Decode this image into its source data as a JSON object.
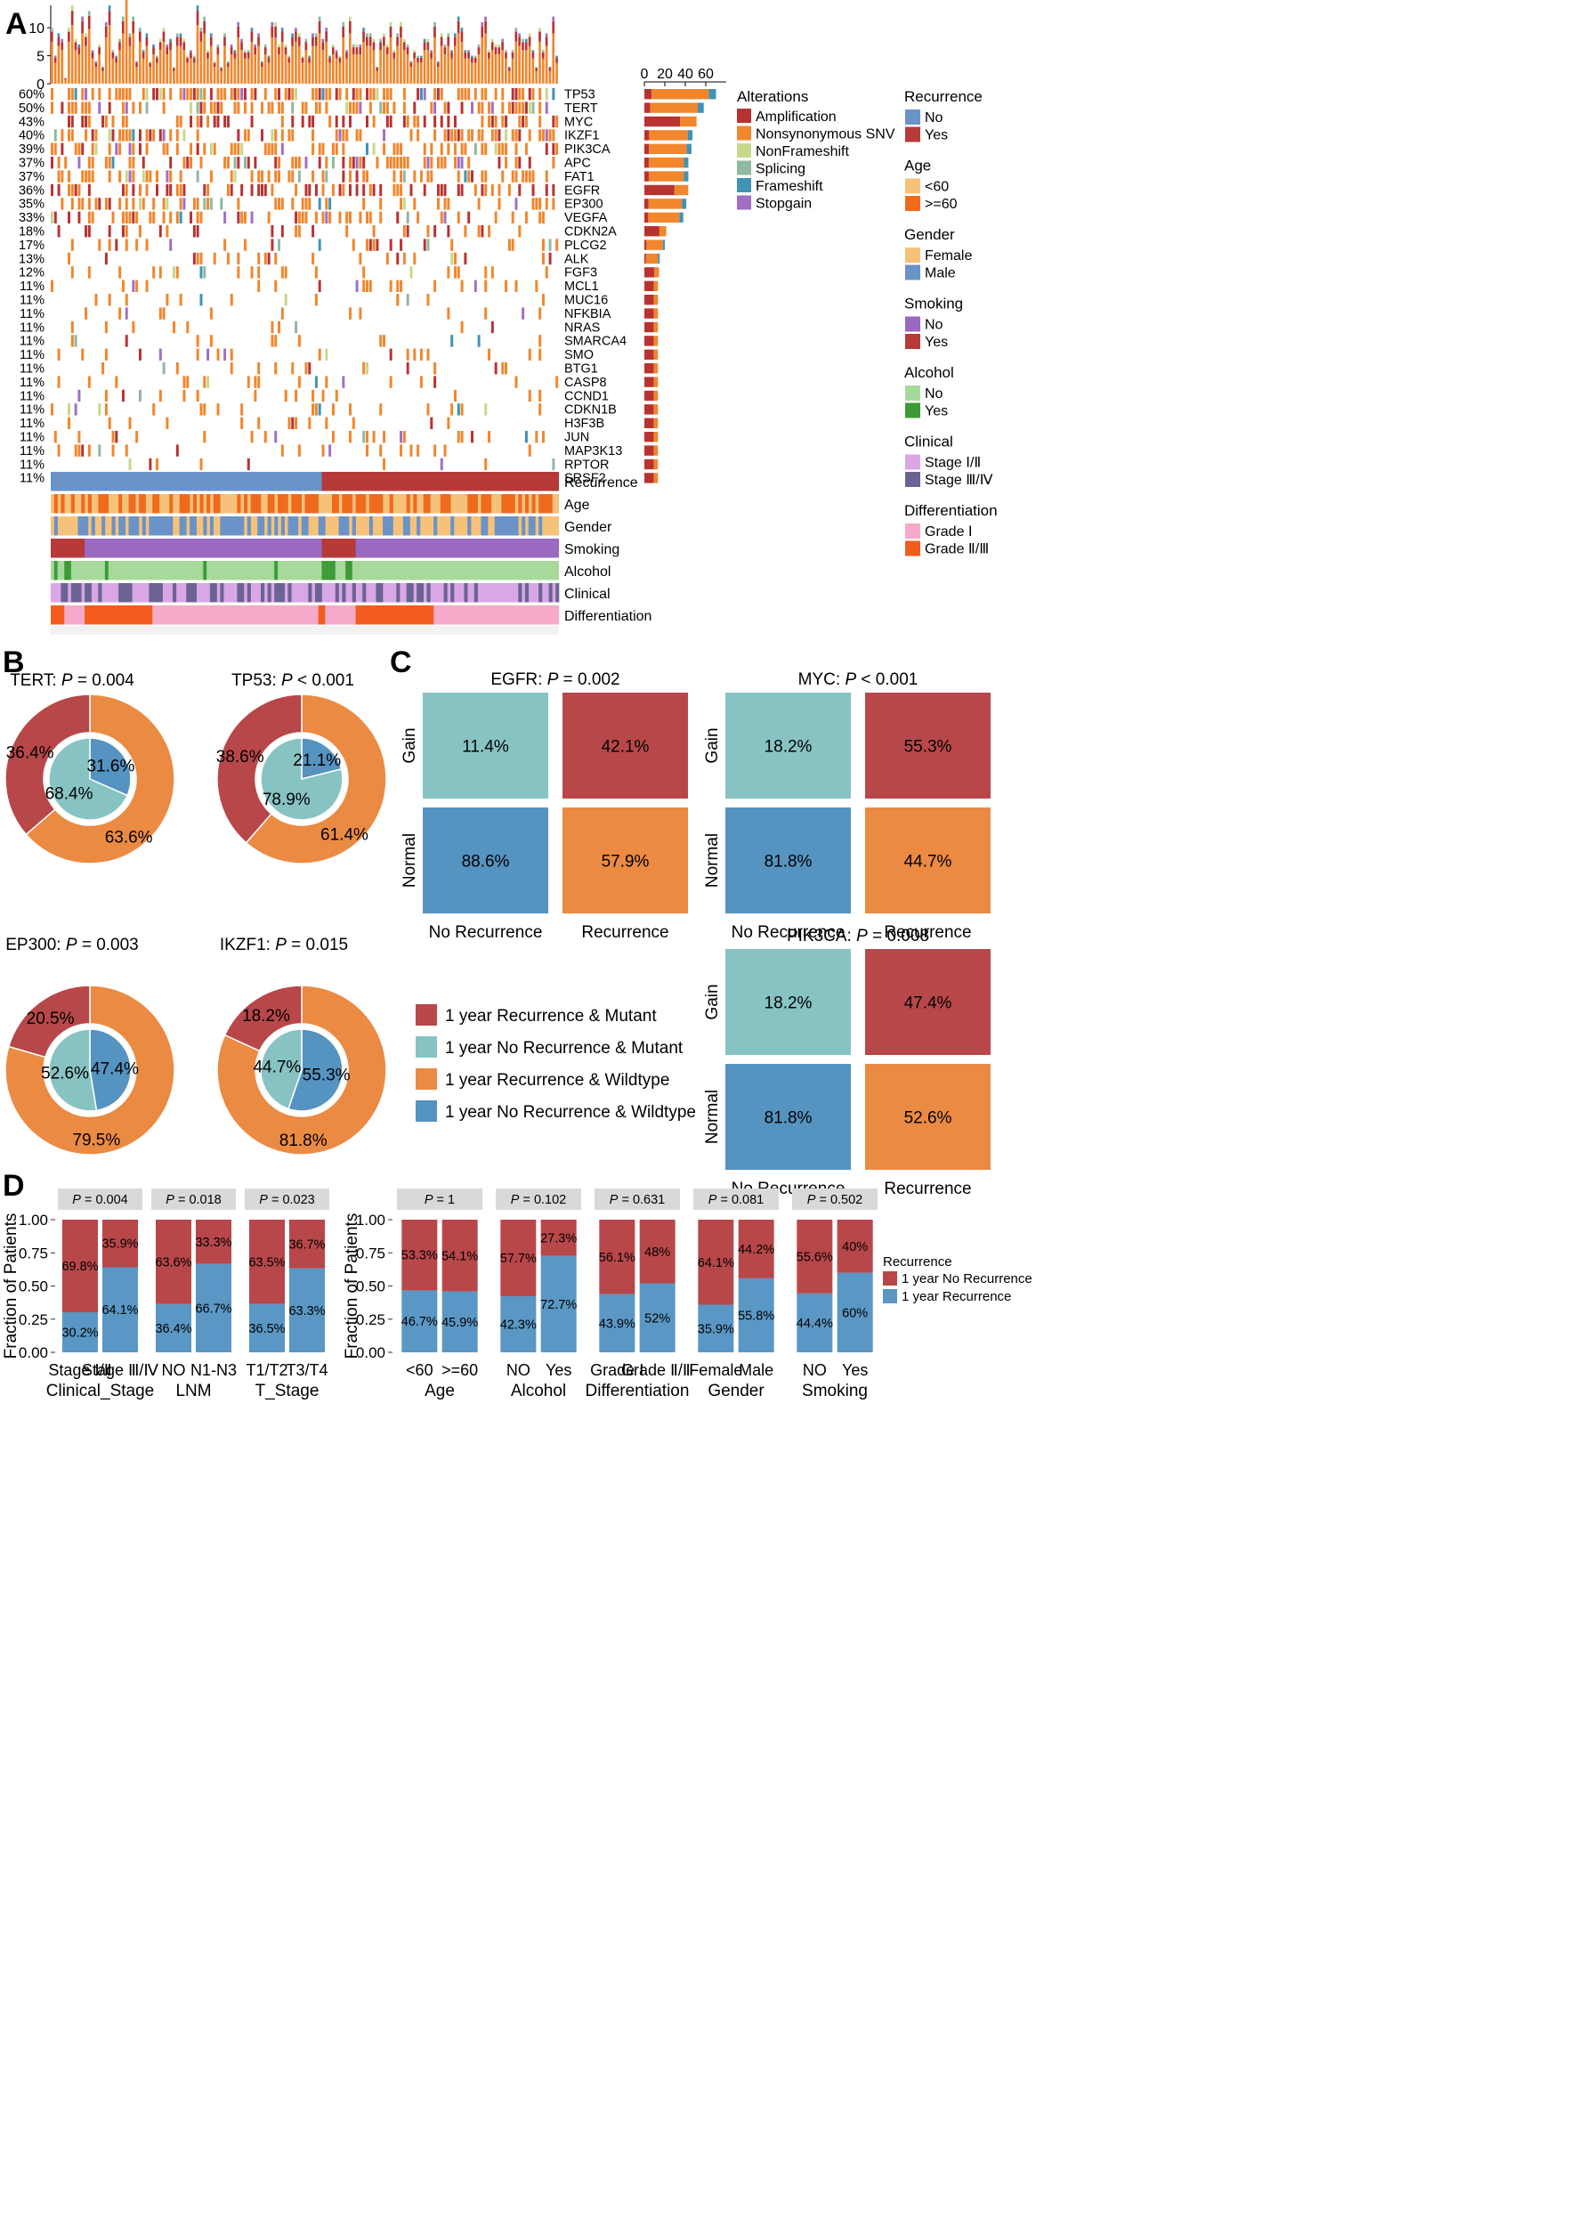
{
  "panels": {
    "A": "A",
    "B": "B",
    "C": "C",
    "D": "D"
  },
  "colors": {
    "amp": "#b83232",
    "snv": "#f1862c",
    "nonfs": "#c6d88a",
    "splicing": "#8fb9a0",
    "frameshift": "#3f93b5",
    "stopgain": "#a06fc4",
    "no_blue": "#6a93c8",
    "yes_red": "#b53a38",
    "age_lt60": "#f6c27a",
    "age_ge60": "#f06a1e",
    "female": "#f6c27a",
    "male": "#6a93c8",
    "smoke_no": "#9b69c0",
    "smoke_yes": "#b53a38",
    "alc_no": "#a6d99a",
    "alc_yes": "#3c9b37",
    "stage12": "#d9a6e6",
    "stage34": "#6b6394",
    "grade1": "#f4aac8",
    "grade23": "#f25c1c",
    "pie_mut_rec": "#b8474a",
    "pie_mut_norec": "#88c3c3",
    "pie_wt_rec": "#eb8a42",
    "pie_wt_norec": "#5593c0",
    "bar_norec": "#b8474a",
    "bar_rec": "#5a97c4"
  },
  "panelA": {
    "topbar_ticks": [
      "0",
      "5",
      "10"
    ],
    "sidebar_ticks": [
      "0",
      "20",
      "40",
      "60"
    ],
    "genes": [
      {
        "pct": "60%",
        "gene": "TP53",
        "count": 70
      },
      {
        "pct": "50%",
        "gene": "TERT",
        "count": 58
      },
      {
        "pct": "43%",
        "gene": "MYC",
        "count": 50
      },
      {
        "pct": "40%",
        "gene": "IKZF1",
        "count": 47
      },
      {
        "pct": "39%",
        "gene": "PIK3CA",
        "count": 46
      },
      {
        "pct": "37%",
        "gene": "APC",
        "count": 43
      },
      {
        "pct": "37%",
        "gene": "FAT1",
        "count": 43
      },
      {
        "pct": "36%",
        "gene": "EGFR",
        "count": 42
      },
      {
        "pct": "35%",
        "gene": "EP300",
        "count": 41
      },
      {
        "pct": "33%",
        "gene": "VEGFA",
        "count": 38
      },
      {
        "pct": "18%",
        "gene": "CDKN2A",
        "count": 21
      },
      {
        "pct": "17%",
        "gene": "PLCG2",
        "count": 20
      },
      {
        "pct": "13%",
        "gene": "ALK",
        "count": 15
      },
      {
        "pct": "12%",
        "gene": "FGF3",
        "count": 14
      },
      {
        "pct": "11%",
        "gene": "MCL1",
        "count": 13
      },
      {
        "pct": "11%",
        "gene": "MUC16",
        "count": 13
      },
      {
        "pct": "11%",
        "gene": "NFKBIA",
        "count": 13
      },
      {
        "pct": "11%",
        "gene": "NRAS",
        "count": 13
      },
      {
        "pct": "11%",
        "gene": "SMARCA4",
        "count": 13
      },
      {
        "pct": "11%",
        "gene": "SMO",
        "count": 13
      },
      {
        "pct": "11%",
        "gene": "BTG1",
        "count": 13
      },
      {
        "pct": "11%",
        "gene": "CASP8",
        "count": 13
      },
      {
        "pct": "11%",
        "gene": "CCND1",
        "count": 13
      },
      {
        "pct": "11%",
        "gene": "CDKN1B",
        "count": 13
      },
      {
        "pct": "11%",
        "gene": "H3F3B",
        "count": 13
      },
      {
        "pct": "11%",
        "gene": "JUN",
        "count": 13
      },
      {
        "pct": "11%",
        "gene": "MAP3K13",
        "count": 13
      },
      {
        "pct": "11%",
        "gene": "RPTOR",
        "count": 13
      },
      {
        "pct": "11%",
        "gene": "SRSF2",
        "count": 13
      }
    ],
    "tracks": [
      "Recurrence",
      "Age",
      "Gender",
      "Smoking",
      "Alcohol",
      "Clinical",
      "Differentiation"
    ],
    "legend_alterations": {
      "title": "Alterations",
      "items": [
        "Amplification",
        "Nonsynonymous SNV",
        "NonFrameshift",
        "Splicing",
        "Frameshift",
        "Stopgain"
      ]
    },
    "legend_groups": [
      {
        "title": "Recurrence",
        "items": [
          "No",
          "Yes"
        ]
      },
      {
        "title": "Age",
        "items": [
          "<60",
          ">=60"
        ]
      },
      {
        "title": "Gender",
        "items": [
          "Female",
          "Male"
        ]
      },
      {
        "title": "Smoking",
        "items": [
          "No",
          "Yes"
        ]
      },
      {
        "title": "Alcohol",
        "items": [
          "No",
          "Yes"
        ]
      },
      {
        "title": "Clinical",
        "items": [
          "Stage Ⅰ/Ⅱ",
          "Stage Ⅲ/Ⅳ"
        ]
      },
      {
        "title": "Differentiation",
        "items": [
          "Grade Ⅰ",
          "Grade Ⅱ/Ⅲ"
        ]
      }
    ]
  },
  "chart_data": [
    {
      "type": "pie",
      "panel": "B",
      "title_gene": "TERT",
      "title_p": "P = 0.004",
      "outer": [
        {
          "label": "36.4%",
          "value": 36.4,
          "group": "1 year Recurrence & Mutant"
        },
        {
          "label": "63.6%",
          "value": 63.6,
          "group": "1 year Recurrence & Wildtype"
        }
      ],
      "inner": [
        {
          "label": "31.6%",
          "value": 31.6,
          "group": "1 year No Recurrence & Wildtype"
        },
        {
          "label": "68.4%",
          "value": 68.4,
          "group": "1 year No Recurrence & Mutant"
        }
      ]
    },
    {
      "type": "pie",
      "panel": "B",
      "title_gene": "TP53",
      "title_p": "P < 0.001",
      "outer": [
        {
          "label": "38.6%",
          "value": 38.6,
          "group": "1 year Recurrence & Mutant"
        },
        {
          "label": "61.4%",
          "value": 61.4,
          "group": "1 year Recurrence & Wildtype"
        }
      ],
      "inner": [
        {
          "label": "21.1%",
          "value": 21.1,
          "group": "1 year No Recurrence & Wildtype"
        },
        {
          "label": "78.9%",
          "value": 78.9,
          "group": "1 year No Recurrence & Mutant"
        }
      ]
    },
    {
      "type": "pie",
      "panel": "B",
      "title_gene": "EP300",
      "title_p": "P = 0.003",
      "outer": [
        {
          "label": "20.5%",
          "value": 20.5,
          "group": "1 year Recurrence & Mutant"
        },
        {
          "label": "79.5%",
          "value": 79.5,
          "group": "1 year Recurrence & Wildtype"
        }
      ],
      "inner": [
        {
          "label": "47.4%",
          "value": 47.4,
          "group": "1 year No Recurrence & Wildtype"
        },
        {
          "label": "52.6%",
          "value": 52.6,
          "group": "1 year No Recurrence & Mutant"
        }
      ]
    },
    {
      "type": "pie",
      "panel": "B",
      "title_gene": "IKZF1",
      "title_p": "P = 0.015",
      "outer": [
        {
          "label": "18.2%",
          "value": 18.2,
          "group": "1 year Recurrence & Mutant"
        },
        {
          "label": "81.8%",
          "value": 81.8,
          "group": "1 year Recurrence & Wildtype"
        }
      ],
      "inner": [
        {
          "label": "55.3%",
          "value": 55.3,
          "group": "1 year No Recurrence & Wildtype"
        },
        {
          "label": "44.7%",
          "value": 44.7,
          "group": "1 year No Recurrence & Mutant"
        }
      ]
    },
    {
      "type": "table",
      "panel": "C",
      "title_gene": "EGFR",
      "title_p": "P = 0.002",
      "rows": [
        "Gain",
        "Normal"
      ],
      "cols": [
        "No Recurrence",
        "Recurrence"
      ],
      "values": [
        [
          "11.4%",
          "42.1%"
        ],
        [
          "88.6%",
          "57.9%"
        ]
      ]
    },
    {
      "type": "table",
      "panel": "C",
      "title_gene": "MYC",
      "title_p": "P < 0.001",
      "rows": [
        "Gain",
        "Normal"
      ],
      "cols": [
        "No Recurrence",
        "Recurrence"
      ],
      "values": [
        [
          "18.2%",
          "55.3%"
        ],
        [
          "81.8%",
          "44.7%"
        ]
      ]
    },
    {
      "type": "table",
      "panel": "C",
      "title_gene": "PIK3CA",
      "title_p": "P = 0.008",
      "rows": [
        "Gain",
        "Normal"
      ],
      "cols": [
        "No Recurrence",
        "Recurrence"
      ],
      "values": [
        [
          "18.2%",
          "47.4%"
        ],
        [
          "81.8%",
          "52.6%"
        ]
      ]
    },
    {
      "type": "bar",
      "panel": "D",
      "stacked": true,
      "ylabel": "Fraction of Patients",
      "ylim": [
        0,
        1
      ],
      "yticks": [
        "0.00",
        "0.25",
        "0.50",
        "0.75",
        "1.00"
      ],
      "groups": [
        {
          "pval": "P = 0.004",
          "xlabel": "Clinical_Stage",
          "categories": [
            "Stage Ⅰ/Ⅱ",
            "Stage Ⅲ/Ⅳ"
          ],
          "rec": [
            30.2,
            64.1
          ],
          "norec": [
            69.8,
            35.9
          ],
          "rec_labels": [
            "30.2%",
            "64.1%"
          ],
          "norec_labels": [
            "69.8%",
            "35.9%"
          ]
        },
        {
          "pval": "P = 0.018",
          "xlabel": "LNM",
          "categories": [
            "NO",
            "N1-N3"
          ],
          "rec": [
            36.4,
            66.7
          ],
          "norec": [
            63.6,
            33.3
          ],
          "rec_labels": [
            "36.4%",
            "66.7%"
          ],
          "norec_labels": [
            "63.6%",
            "33.3%"
          ]
        },
        {
          "pval": "P = 0.023",
          "xlabel": "T_Stage",
          "categories": [
            "T1/T2",
            "T3/T4"
          ],
          "rec": [
            36.5,
            63.3
          ],
          "norec": [
            63.5,
            36.7
          ],
          "rec_labels": [
            "36.5%",
            "63.3%"
          ],
          "norec_labels": [
            "63.5%",
            "36.7%"
          ]
        }
      ]
    },
    {
      "type": "bar",
      "panel": "D",
      "stacked": true,
      "ylabel": "Fraction of Patients",
      "ylim": [
        0,
        1
      ],
      "yticks": [
        "0.00",
        "0.25",
        "0.50",
        "0.75",
        "1.00"
      ],
      "legend_title": "Recurrence",
      "legend": [
        "1 year No Recurrence",
        "1 year Recurrence"
      ],
      "groups": [
        {
          "pval": "P = 1",
          "xlabel": "Age",
          "categories": [
            "<60",
            ">=60"
          ],
          "rec": [
            46.7,
            45.9
          ],
          "norec": [
            53.3,
            54.1
          ],
          "rec_labels": [
            "46.7%",
            "45.9%"
          ],
          "norec_labels": [
            "53.3%",
            "54.1%"
          ]
        },
        {
          "pval": "P = 0.102",
          "xlabel": "Alcohol",
          "categories": [
            "NO",
            "Yes"
          ],
          "rec": [
            42.3,
            72.7
          ],
          "norec": [
            57.7,
            27.3
          ],
          "rec_labels": [
            "42.3%",
            "72.7%"
          ],
          "norec_labels": [
            "57.7%",
            "27.3%"
          ]
        },
        {
          "pval": "P = 0.631",
          "xlabel": "Differentiation",
          "categories": [
            "Grade Ⅰ",
            "Grade Ⅱ/Ⅲ"
          ],
          "rec": [
            43.9,
            52
          ],
          "norec": [
            56.1,
            48
          ],
          "rec_labels": [
            "43.9%",
            "52%"
          ],
          "norec_labels": [
            "56.1%",
            "48%"
          ]
        },
        {
          "pval": "P = 0.081",
          "xlabel": "Gender",
          "categories": [
            "Female",
            "Male"
          ],
          "rec": [
            35.9,
            55.8
          ],
          "norec": [
            64.1,
            44.2
          ],
          "rec_labels": [
            "35.9%",
            "55.8%"
          ],
          "norec_labels": [
            "64.1%",
            "44.2%"
          ]
        },
        {
          "pval": "P = 0.502",
          "xlabel": "Smoking",
          "categories": [
            "NO",
            "Yes"
          ],
          "rec": [
            44.4,
            60
          ],
          "norec": [
            55.6,
            40
          ],
          "rec_labels": [
            "44.4%",
            "60%"
          ],
          "norec_labels": [
            "55.6%",
            "40%"
          ]
        }
      ]
    }
  ],
  "pie_legend": [
    "1 year Recurrence & Mutant",
    "1 year No Recurrence & Mutant",
    "1 year Recurrence & Wildtype",
    "1 year No Recurrence & Wildtype"
  ]
}
